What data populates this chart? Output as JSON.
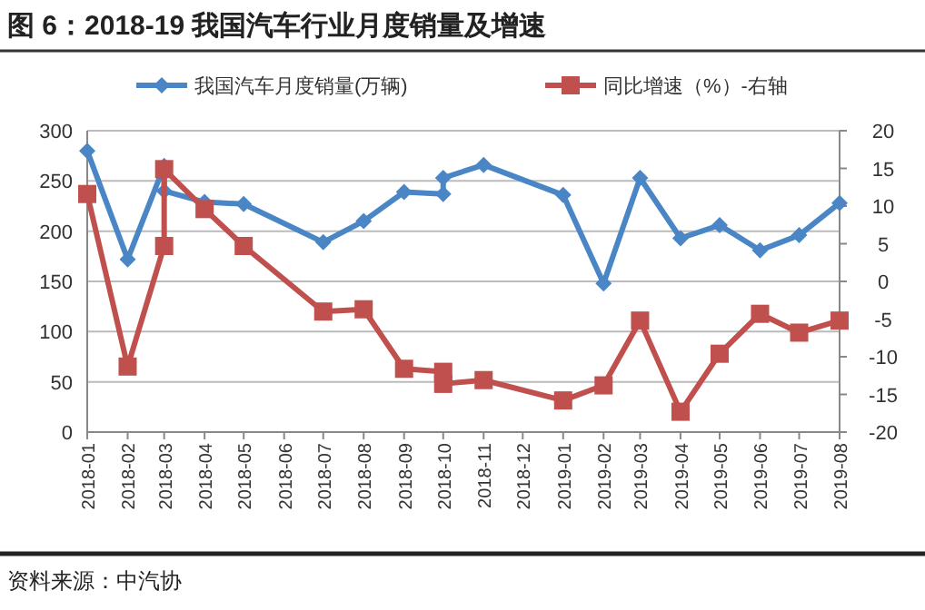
{
  "chart_data": {
    "type": "line",
    "title": "图 6：2018-19 我国汽车行业月度销量及增速",
    "annotations": [
      "资料来源：中汽协"
    ],
    "xlim": [
      "2018-01",
      "2019-08"
    ],
    "xticks": [
      "2018-01",
      "2018-02",
      "2018-03",
      "2018-04",
      "2018-05",
      "2018-06",
      "2018-07",
      "2018-08",
      "2018-09",
      "2018-10",
      "2018-11",
      "2018-12",
      "2019-01",
      "2019-02",
      "2019-03",
      "2019-04",
      "2019-05",
      "2019-06",
      "2019-07",
      "2019-08"
    ],
    "ylim": [
      0,
      300
    ],
    "yticks": [
      0,
      50,
      100,
      150,
      200,
      250,
      300
    ],
    "y2lim": [
      -20,
      20
    ],
    "y2ticks": [
      -20,
      -15,
      -10,
      -5,
      0,
      5,
      10,
      15,
      20
    ],
    "grid": "y",
    "legend": "top",
    "series": [
      {
        "name": "我国汽车月度销量(万辆)",
        "color": "#4a86c5",
        "marker": "diamond",
        "x": [
          "2018-01",
          "2018-02",
          "2018-03",
          "2018-03",
          "2018-04",
          "2018-05",
          "2018-07",
          "2018-08",
          "2018-09",
          "2018-10",
          "2018-10",
          "2018-11",
          "2019-01",
          "2019-02",
          "2019-03",
          "2019-04",
          "2019-05",
          "2019-06",
          "2019-07",
          "2019-08"
        ],
        "values": [
          280,
          172,
          265,
          240,
          229,
          227,
          189,
          210,
          239,
          237,
          253,
          266,
          236,
          148,
          253,
          193,
          206,
          181,
          196,
          228
        ]
      },
      {
        "name": "同比增速（%）-右轴",
        "color": "#c0504d",
        "marker": "square",
        "axis": "y2",
        "x": [
          "2018-01",
          "2018-02",
          "2018-03",
          "2018-03",
          "2018-04",
          "2018-05",
          "2018-07",
          "2018-08",
          "2018-09",
          "2018-10",
          "2018-10",
          "2018-11",
          "2019-01",
          "2019-02",
          "2019-03",
          "2019-04",
          "2019-05",
          "2019-06",
          "2019-07",
          "2019-08"
        ],
        "values": [
          11.6,
          -11.3,
          4.7,
          14.9,
          9.6,
          4.7,
          -4,
          -3.7,
          -11.6,
          -12,
          -13.6,
          -13.1,
          -15.8,
          -13.8,
          -5.2,
          -17.3,
          -9.6,
          -4.3,
          -6.8,
          -5.2
        ]
      }
    ]
  }
}
